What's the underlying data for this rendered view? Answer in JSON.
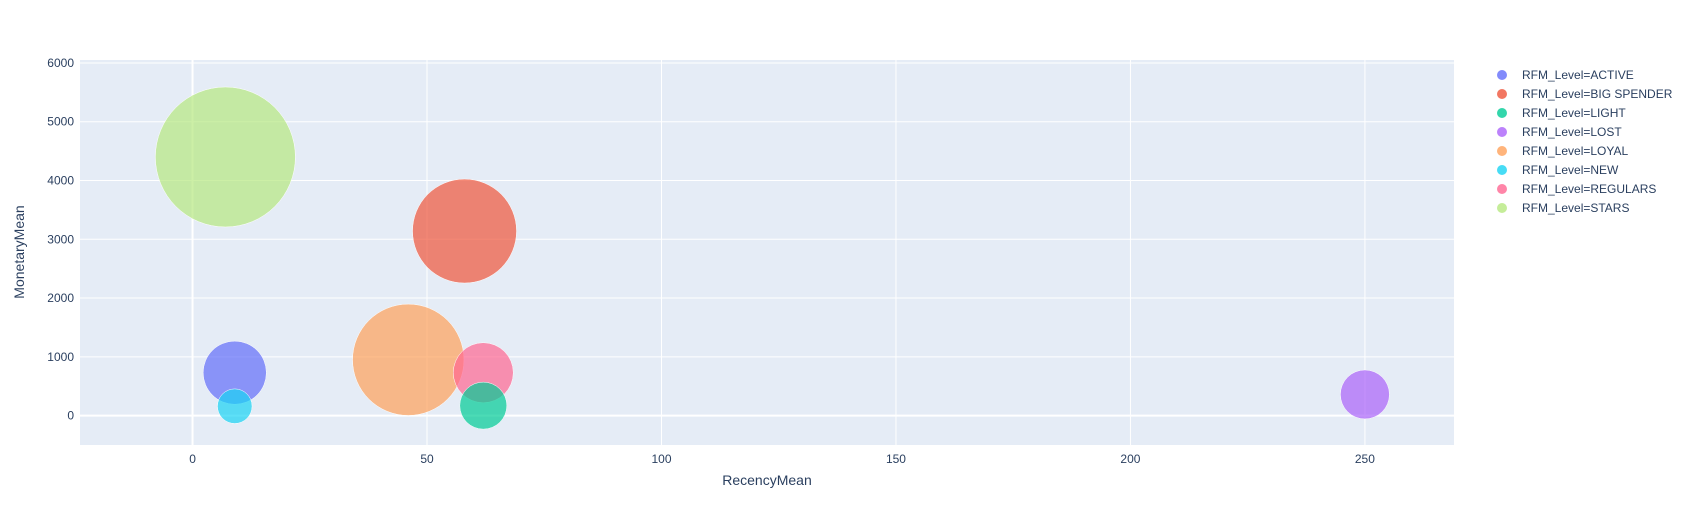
{
  "chart_data": {
    "type": "scatter",
    "title": "",
    "xlabel": "RecencyMean",
    "ylabel": "MonetaryMean",
    "xlim": [
      -24,
      269
    ],
    "ylim": [
      -500,
      6050
    ],
    "x_ticks": [
      0,
      50,
      100,
      150,
      200,
      250
    ],
    "y_ticks": [
      0,
      1000,
      2000,
      3000,
      4000,
      5000,
      6000
    ],
    "grid": true,
    "legend_position": "top-right",
    "series": [
      {
        "name": "RFM_Level=ACTIVE",
        "color": "#636efa",
        "x": 9,
        "y": 730,
        "size": 1.0
      },
      {
        "name": "RFM_Level=BIG SPENDER",
        "color": "#ef553b",
        "x": 58,
        "y": 3140,
        "size": 2.7
      },
      {
        "name": "RFM_Level=LIGHT",
        "color": "#00cc96",
        "x": 62,
        "y": 170,
        "size": 0.55
      },
      {
        "name": "RFM_Level=LOST",
        "color": "#ab63fa",
        "x": 250,
        "y": 360,
        "size": 0.6
      },
      {
        "name": "RFM_Level=LOYAL",
        "color": "#ffa15a",
        "x": 46,
        "y": 950,
        "size": 3.1
      },
      {
        "name": "RFM_Level=NEW",
        "color": "#19d3f3",
        "x": 9,
        "y": 160,
        "size": 0.3
      },
      {
        "name": "RFM_Level=REGULARS",
        "color": "#ff6692",
        "x": 62,
        "y": 730,
        "size": 0.9
      },
      {
        "name": "RFM_Level=STARS",
        "color": "#b6e880",
        "x": 7,
        "y": 4400,
        "size": 4.9
      }
    ]
  }
}
